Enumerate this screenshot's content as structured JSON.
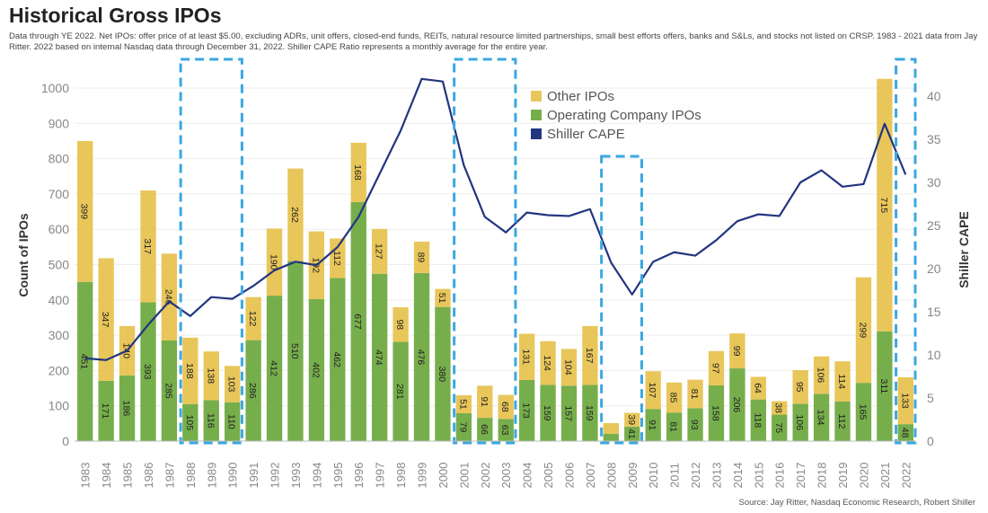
{
  "header": {
    "title": "Historical Gross IPOs",
    "subtitle": "Data through YE 2022. Net IPOs: offer price of at least $5.00, excluding ADRs, unit offers, closed-end funds, REITs, natural resource limited partnerships, small best efforts offers, banks and S&Ls, and stocks not listed on CRSP. 1983 - 2021 data from Jay Ritter. 2022 based on internal Nasdaq data through December 31, 2022. Shiller CAPE Ratio represents a monthly average for the entire year."
  },
  "footer": {
    "source": "Source: Jay Ritter, Nasdaq Economic Research, Robert Shiller"
  },
  "colors": {
    "other": "#e8c65a",
    "operating": "#77ae4c",
    "cape": "#22357f",
    "highlight": "#3aa8e0",
    "grid": "#eeeeee"
  },
  "chart_data": {
    "type": "bar",
    "title": "Historical Gross IPOs",
    "ylabel": "Count of IPOs",
    "y2label": "Shiller CAPE",
    "ylim": [
      0,
      1000
    ],
    "y2lim": [
      0,
      40
    ],
    "yticks": [
      0,
      100,
      200,
      300,
      400,
      500,
      600,
      700,
      800,
      900,
      1000
    ],
    "y2ticks": [
      0,
      5,
      10,
      15,
      20,
      25,
      30,
      35,
      40
    ],
    "stacked": true,
    "grid": true,
    "legend": "top-center",
    "categories": [
      "1983",
      "1984",
      "1985",
      "1986",
      "1987",
      "1988",
      "1989",
      "1990",
      "1991",
      "1992",
      "1993",
      "1994",
      "1995",
      "1996",
      "1997",
      "1998",
      "1999",
      "2000",
      "2001",
      "2002",
      "2003",
      "2004",
      "2005",
      "2006",
      "2007",
      "2008",
      "2009",
      "2010",
      "2011",
      "2012",
      "2013",
      "2014",
      "2015",
      "2016",
      "2017",
      "2018",
      "2019",
      "2020",
      "2021",
      "2022"
    ],
    "series": [
      {
        "name": "Operating Company IPOs",
        "type": "bar",
        "values": [
          451,
          171,
          186,
          393,
          285,
          105,
          116,
          110,
          286,
          412,
          510,
          402,
          462,
          677,
          474,
          281,
          476,
          380,
          79,
          66,
          63,
          173,
          159,
          157,
          159,
          21,
          41,
          91,
          81,
          93,
          158,
          206,
          118,
          75,
          106,
          134,
          112,
          165,
          311,
          48
        ],
        "labels": [
          "451",
          "171",
          "186",
          "393",
          "285",
          "105",
          "116",
          "110",
          "286",
          "412",
          "510",
          "402",
          "462",
          "677",
          "474",
          "281",
          "476",
          "380",
          "79",
          "66",
          "63",
          "173",
          "159",
          "157",
          "159",
          "",
          "41",
          "91",
          "81",
          "93",
          "158",
          "206",
          "118",
          "75",
          "106",
          "134",
          "112",
          "165",
          "311",
          "48"
        ]
      },
      {
        "name": "Other IPOs",
        "type": "bar",
        "values": [
          399,
          347,
          140,
          317,
          246,
          188,
          138,
          103,
          122,
          190,
          262,
          192,
          112,
          168,
          127,
          98,
          89,
          51,
          51,
          91,
          68,
          131,
          124,
          104,
          167,
          30,
          39,
          107,
          85,
          81,
          97,
          99,
          64,
          38,
          95,
          106,
          114,
          299,
          715,
          133
        ],
        "labels": [
          "399",
          "347",
          "140",
          "317",
          "246",
          "188",
          "138",
          "103",
          "122",
          "190",
          "262",
          "192",
          "112",
          "168",
          "127",
          "98",
          "89",
          "51",
          "51",
          "91",
          "68",
          "131",
          "124",
          "104",
          "167",
          "",
          "39",
          "107",
          "85",
          "81",
          "97",
          "99",
          "64",
          "38",
          "95",
          "106",
          "114",
          "299",
          "715",
          "133"
        ]
      },
      {
        "name": "Shiller CAPE",
        "type": "line",
        "axis": "right",
        "values": [
          9.6,
          9.4,
          10.5,
          13.5,
          16.2,
          14.5,
          16.7,
          16.5,
          18.0,
          19.8,
          20.8,
          20.4,
          22.5,
          26.0,
          31.0,
          36.0,
          42.0,
          41.7,
          32.0,
          26.0,
          24.2,
          26.5,
          26.2,
          26.1,
          26.9,
          20.7,
          17.0,
          20.8,
          21.9,
          21.5,
          23.3,
          25.5,
          26.3,
          26.1,
          30.0,
          31.4,
          29.5,
          29.8,
          36.8,
          30.9
        ]
      }
    ],
    "highlight_groups": [
      [
        "1988",
        "1990"
      ],
      [
        "2001",
        "2003"
      ],
      [
        "2008",
        "2009"
      ],
      [
        "2022",
        "2022"
      ]
    ]
  }
}
